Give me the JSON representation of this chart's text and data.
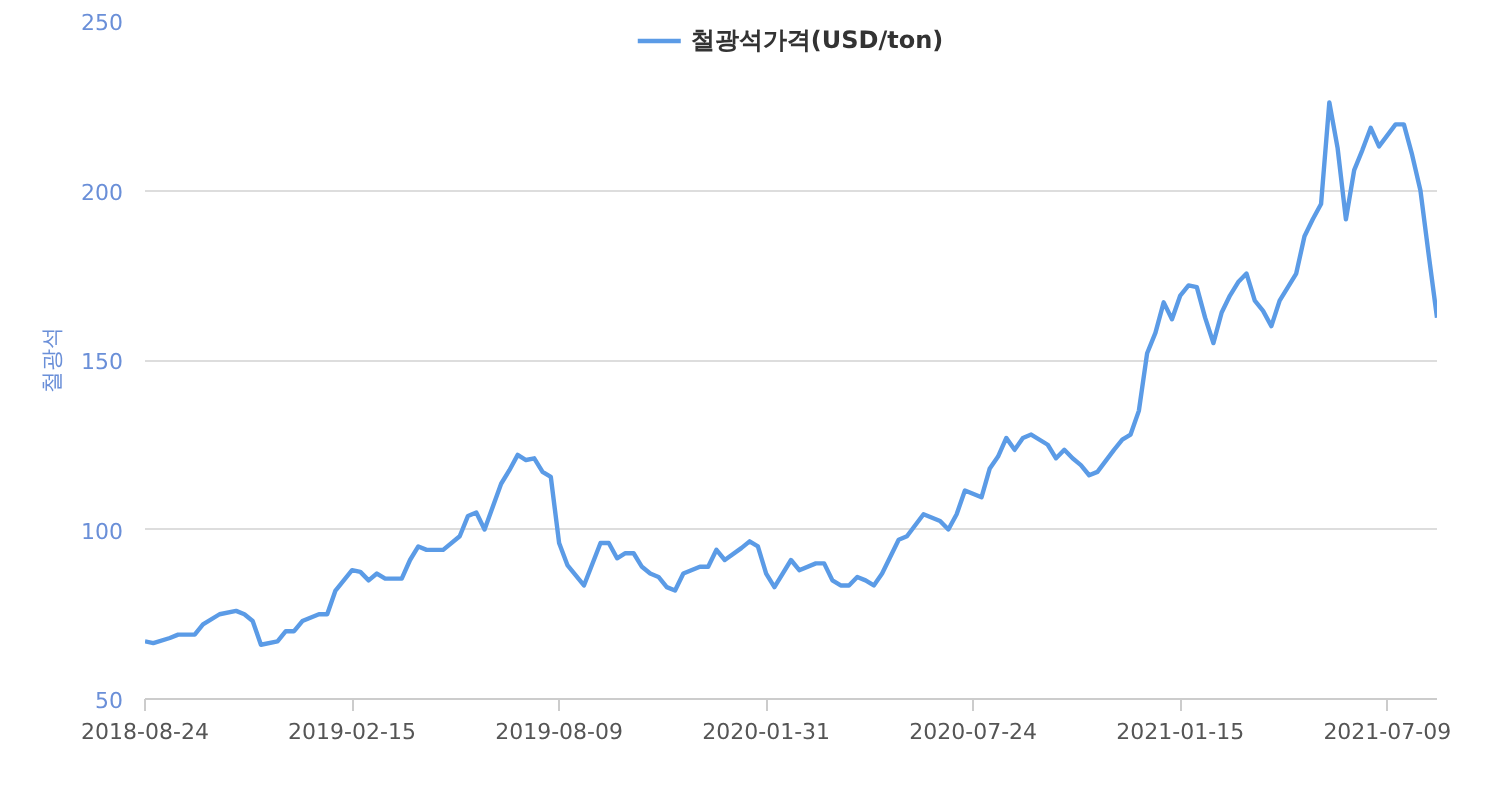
{
  "chart_data": {
    "type": "line",
    "ylabel": "철광석",
    "legend": "top",
    "grid": "y",
    "marker": "none",
    "line_style": "solid",
    "ylim": [
      50,
      250
    ],
    "yticks": [
      50,
      100,
      150,
      200,
      250
    ],
    "xlim": [
      "2018-08-24",
      "2021-08-20"
    ],
    "xticks": [
      {
        "value": "2018-08-24",
        "label": "2018-08-24"
      },
      {
        "value": "2019-02-15",
        "label": "2019-02-15"
      },
      {
        "value": "2019-08-09",
        "label": "2019-08-09"
      },
      {
        "value": "2020-01-31",
        "label": "2020-01-31"
      },
      {
        "value": "2020-07-24",
        "label": "2020-07-24"
      },
      {
        "value": "2021-01-15",
        "label": "2021-01-15"
      },
      {
        "value": "2021-07-09",
        "label": "2021-07-09"
      }
    ],
    "x": [
      "2018-08-24",
      "2018-08-31",
      "2018-09-14",
      "2018-09-21",
      "2018-10-05",
      "2018-10-12",
      "2018-10-26",
      "2018-11-09",
      "2018-11-16",
      "2018-11-23",
      "2018-11-30",
      "2018-12-14",
      "2018-12-21",
      "2018-12-28",
      "2019-01-04",
      "2019-01-18",
      "2019-01-25",
      "2019-02-01",
      "2019-02-15",
      "2019-02-22",
      "2019-03-01",
      "2019-03-08",
      "2019-03-15",
      "2019-03-29",
      "2019-04-05",
      "2019-04-12",
      "2019-04-19",
      "2019-05-03",
      "2019-05-17",
      "2019-05-24",
      "2019-05-31",
      "2019-06-07",
      "2019-06-21",
      "2019-06-28",
      "2019-07-05",
      "2019-07-12",
      "2019-07-19",
      "2019-07-26",
      "2019-08-02",
      "2019-08-09",
      "2019-08-16",
      "2019-08-30",
      "2019-09-13",
      "2019-09-20",
      "2019-09-27",
      "2019-10-04",
      "2019-10-11",
      "2019-10-18",
      "2019-10-25",
      "2019-11-01",
      "2019-11-08",
      "2019-11-15",
      "2019-11-22",
      "2019-12-06",
      "2019-12-13",
      "2019-12-20",
      "2019-12-27",
      "2020-01-10",
      "2020-01-17",
      "2020-01-24",
      "2020-01-31",
      "2020-02-07",
      "2020-02-21",
      "2020-02-28",
      "2020-03-13",
      "2020-03-20",
      "2020-03-27",
      "2020-04-03",
      "2020-04-10",
      "2020-04-17",
      "2020-04-24",
      "2020-05-01",
      "2020-05-08",
      "2020-05-22",
      "2020-05-29",
      "2020-06-12",
      "2020-06-26",
      "2020-07-03",
      "2020-07-10",
      "2020-07-17",
      "2020-07-31",
      "2020-08-07",
      "2020-08-14",
      "2020-08-21",
      "2020-08-28",
      "2020-09-04",
      "2020-09-11",
      "2020-09-25",
      "2020-10-02",
      "2020-10-09",
      "2020-10-16",
      "2020-10-23",
      "2020-10-30",
      "2020-11-06",
      "2020-11-20",
      "2020-11-27",
      "2020-12-04",
      "2020-12-11",
      "2020-12-18",
      "2020-12-25",
      "2021-01-01",
      "2021-01-08",
      "2021-01-15",
      "2021-01-22",
      "2021-01-29",
      "2021-02-05",
      "2021-02-12",
      "2021-02-19",
      "2021-02-26",
      "2021-03-05",
      "2021-03-12",
      "2021-03-19",
      "2021-03-26",
      "2021-04-02",
      "2021-04-09",
      "2021-04-16",
      "2021-04-23",
      "2021-04-30",
      "2021-05-07",
      "2021-05-14",
      "2021-05-21",
      "2021-05-28",
      "2021-06-04",
      "2021-06-11",
      "2021-06-18",
      "2021-06-25",
      "2021-07-02",
      "2021-07-16",
      "2021-07-23",
      "2021-07-30",
      "2021-08-06",
      "2021-08-13",
      "2021-08-20"
    ],
    "series": [
      {
        "name": "철광석가격(USD/ton)",
        "color": "#5b9be6",
        "values": [
          67,
          66.5,
          68,
          69,
          69,
          72,
          75,
          76,
          75,
          73,
          66,
          67,
          70,
          70,
          73,
          75,
          75,
          82,
          88,
          87.5,
          85,
          87,
          85.5,
          85.5,
          91,
          95,
          94,
          94,
          98,
          104,
          105,
          100,
          113.5,
          117.5,
          122,
          120.5,
          121,
          117,
          115.5,
          96,
          89.5,
          83.5,
          96,
          96,
          91.5,
          93,
          93,
          89,
          87,
          86,
          83,
          82,
          87,
          89,
          89,
          94,
          91,
          94.5,
          96.5,
          95,
          87,
          83,
          91,
          88,
          90,
          90,
          85,
          83.5,
          83.5,
          86,
          85,
          83.5,
          87,
          97,
          98,
          104.5,
          102.5,
          100,
          104.5,
          111.5,
          109.5,
          118,
          121.5,
          127,
          123.5,
          127,
          128,
          125,
          121,
          123.5,
          121,
          119,
          116,
          117,
          123.5,
          126.5,
          128,
          135,
          152,
          158,
          167,
          162,
          169,
          172,
          171.5,
          162.5,
          155,
          164,
          169,
          173,
          175.5,
          167.5,
          164.5,
          160,
          167.5,
          171.5,
          175.5,
          186.5,
          191.5,
          196,
          226,
          212.5,
          191.5,
          206,
          212,
          218.5,
          213,
          219.5,
          219.5,
          210.5,
          200,
          181,
          162.5
        ]
      }
    ]
  }
}
